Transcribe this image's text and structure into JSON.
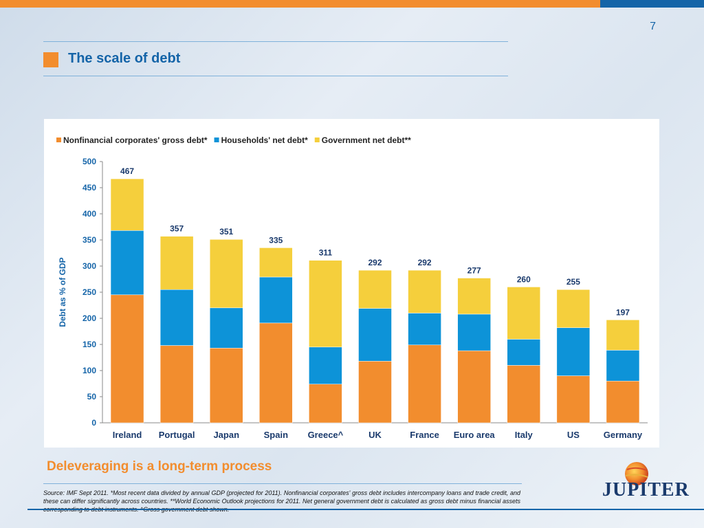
{
  "page": {
    "number": "7",
    "title": "The scale of debt",
    "subtitle": "Deleveraging is a long-term process",
    "source": "Source: IMF Sept 2011. *Most recent data divided by annual GDP (projected for 2011). Nonfinancial corporates' gross debt includes intercompany loans and trade credit, and these can differ significantly across countries. **World Economic Outlook projections for 2011. Net general government debt is calculated as gross debt minus financial assets corresponding to debt instruments. ^Gross government debt shown.",
    "logo_text": "JUPITER",
    "colors": {
      "orange": "#f28d2e",
      "blue": "#1464a8"
    }
  },
  "chart_data": {
    "type": "bar",
    "stacked": true,
    "categories": [
      "Ireland",
      "Portugal",
      "Japan",
      "Spain",
      "Greece^",
      "UK",
      "France",
      "Euro area",
      "Italy",
      "US",
      "Germany"
    ],
    "series": [
      {
        "name": "Nonfinancial corporates' gross debt*",
        "color": "#f28d2e",
        "values": [
          245,
          148,
          143,
          191,
          74,
          118,
          149,
          138,
          110,
          90,
          80
        ]
      },
      {
        "name": "Households' net debt*",
        "color": "#0d93d8",
        "values": [
          123,
          107,
          77,
          88,
          71,
          101,
          61,
          70,
          50,
          92,
          59
        ]
      },
      {
        "name": "Government net debt**",
        "color": "#f5cf3c",
        "values": [
          99,
          102,
          131,
          56,
          166,
          73,
          82,
          69,
          100,
          73,
          58
        ]
      }
    ],
    "totals": [
      "467",
      "357",
      "351",
      "335",
      "311",
      "292",
      "292",
      "277",
      "260",
      "255",
      "197"
    ],
    "ylabel": "Debt as % of GDP",
    "ylim": [
      0,
      500
    ],
    "yticks": [
      0,
      50,
      100,
      150,
      200,
      250,
      300,
      350,
      400,
      450,
      500
    ],
    "legend": "top-left",
    "grid": false
  }
}
